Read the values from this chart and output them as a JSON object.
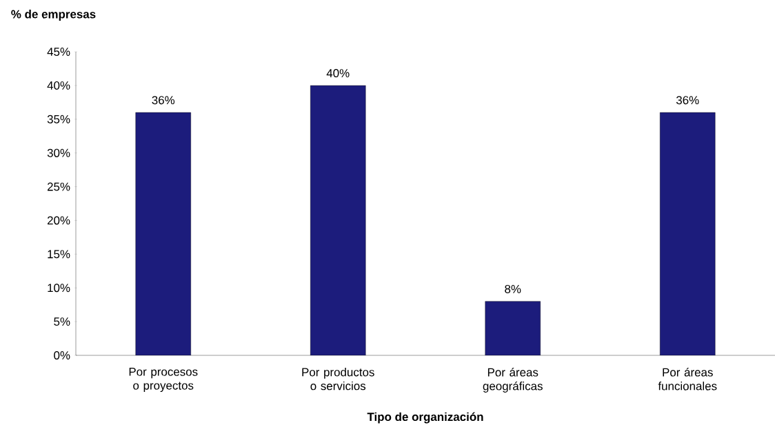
{
  "chart_data": {
    "type": "bar",
    "ylabel": "% de empresas",
    "xlabel": "Tipo de organización",
    "categories": [
      "Por procesos o proyectos",
      "Por productos o servicios",
      "Por áreas geográficas",
      "Por áreas funcionales"
    ],
    "values": [
      36,
      40,
      8,
      36
    ],
    "color": "#1c1c7c",
    "value_labels": [
      "36%",
      "40%",
      "8%",
      "36%"
    ],
    "ylim": [
      0,
      45
    ],
    "yticks": [
      {
        "value": 0,
        "label": "0%"
      },
      {
        "value": 5,
        "label": "5%"
      },
      {
        "value": 10,
        "label": "10%"
      },
      {
        "value": 15,
        "label": "15%"
      },
      {
        "value": 20,
        "label": "20%"
      },
      {
        "value": 25,
        "label": "25%"
      },
      {
        "value": 30,
        "label": "30%"
      },
      {
        "value": 35,
        "label": "35%"
      },
      {
        "value": 40,
        "label": "40%"
      },
      {
        "value": 45,
        "label": "45%"
      }
    ],
    "grid": false
  }
}
